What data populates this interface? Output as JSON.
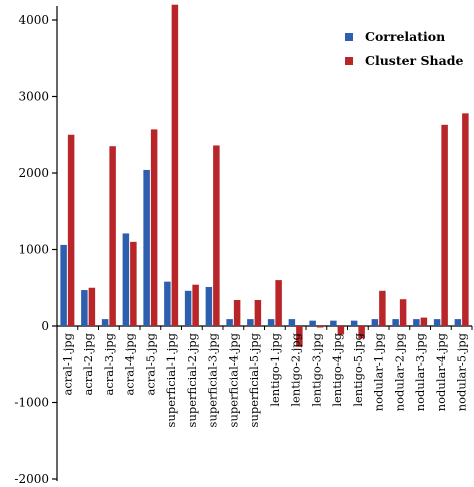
{
  "chart_data": {
    "type": "bar",
    "categories": [
      "acral-1.jpg",
      "acral-2.jpg",
      "acral-3.jpg",
      "acral-4.jpg",
      "acral-5.jpg",
      "superficial-1.jpg",
      "superficial-2.jpg",
      "superficial-3.jpg",
      "superficial-4.jpg",
      "superficial-5.jpg",
      "lentigo-1.jpg",
      "lentigo-2.jpg",
      "lentigo-3.jpg",
      "lentigo-4.jpg",
      "lentigo-5.jpg",
      "nodular-1.jpg",
      "nodular-2.jpg",
      "nodular-3.jpg",
      "nodular-4.jpg",
      "nodular-5.jpg"
    ],
    "series": [
      {
        "name": "Correlation",
        "color": "#2E5FAF",
        "values": [
          1060,
          470,
          90,
          1210,
          2040,
          580,
          460,
          510,
          90,
          90,
          90,
          90,
          70,
          70,
          70,
          90,
          90,
          90,
          90,
          90
        ]
      },
      {
        "name": "Cluster Shade",
        "color": "#B8262A",
        "values": [
          2500,
          500,
          2350,
          1100,
          2570,
          4200,
          540,
          2360,
          340,
          340,
          600,
          -270,
          -20,
          -110,
          -160,
          460,
          350,
          110,
          2630,
          2780
        ]
      }
    ],
    "yticks": [
      "4000",
      "3000",
      "2000",
      "1000",
      "0",
      "-1000",
      "-2000"
    ],
    "ylim": [
      -2000,
      4200
    ],
    "legend_position": "top-right",
    "grid": false
  }
}
